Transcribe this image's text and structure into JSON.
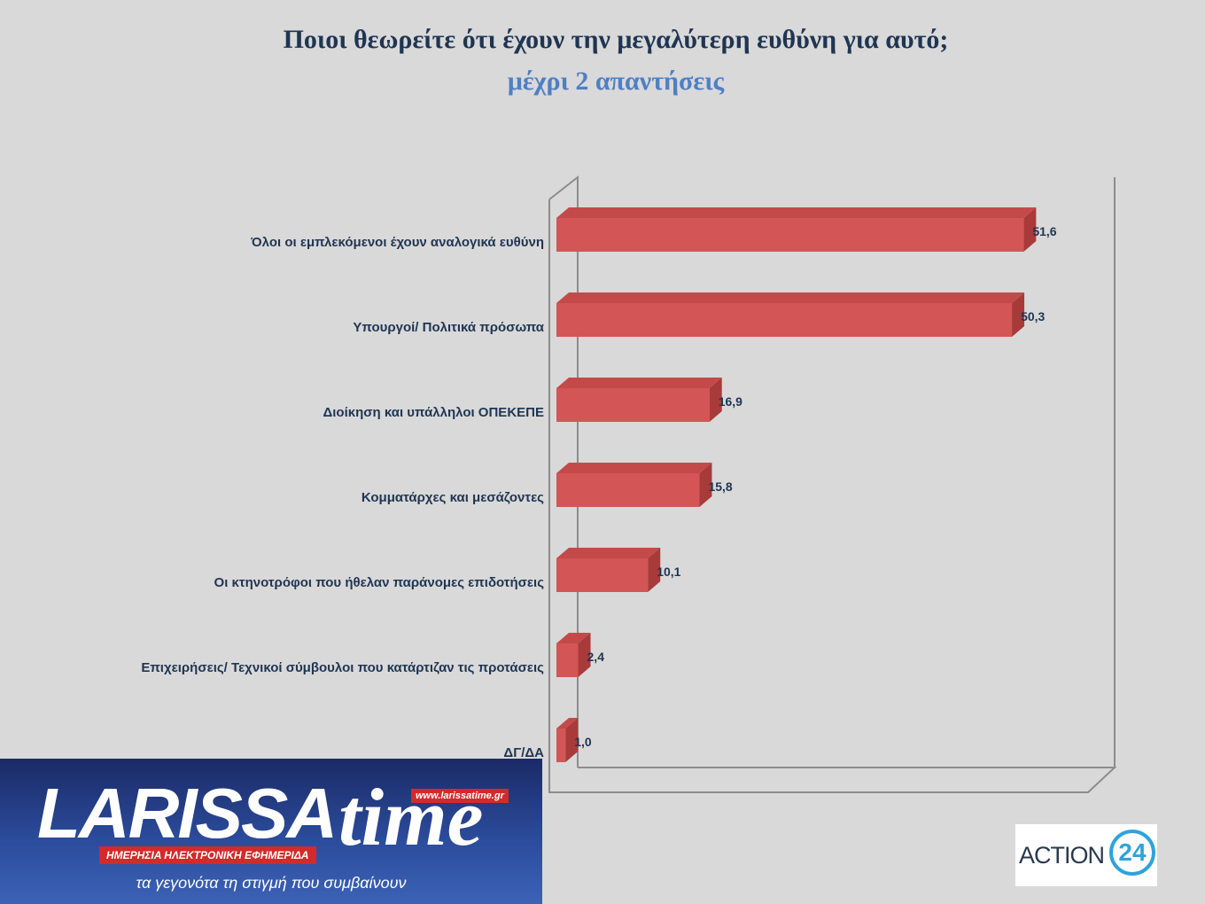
{
  "chart_data": {
    "type": "bar",
    "orientation": "horizontal",
    "title": "Ποιοι θεωρείτε ότι έχουν την μεγαλύτερη ευθύνη για αυτό;",
    "subtitle": "μέχρι 2 απαντήσεις",
    "categories": [
      "Όλοι οι εμπλεκόμενοι έχουν αναλογικά ευθύνη",
      "Υπουργοί/ Πολιτικά πρόσωπα",
      "Διοίκηση και υπάλληλοι ΟΠΕΚΕΠΕ",
      "Κομματάρχες και μεσάζοντες",
      "Οι κτηνοτρόφοι που ήθελαν παράνομες επιδοτήσεις",
      "Επιχειρήσεις/ Τεχνικοί σύμβουλοι που κατάρτιζαν τις προτάσεις",
      "ΔΓ/ΔΑ"
    ],
    "values": [
      51.6,
      50.3,
      16.9,
      15.8,
      10.1,
      2.4,
      1.0
    ],
    "value_labels": [
      "51,6",
      "50,3",
      "16,9",
      "15,8",
      "10,1",
      "2,4",
      "1,0"
    ],
    "xlim": [
      0,
      60
    ],
    "grid": false,
    "bar_color": "#d45555"
  },
  "logos": {
    "larissa_brand": "LARISSA",
    "larissa_time": "time",
    "larissa_url": "www.larissatime.gr",
    "larissa_tagline": "ΗΜΕΡΗΣΙΑ ΗΛΕΚΤΡΟΝΙΚΗ ΕΦΗΜΕΡΙΔΑ",
    "larissa_slogan": "τα γεγονότα τη στιγμή που συμβαίνουν",
    "action_text": "ACTION",
    "action_number": "24"
  }
}
